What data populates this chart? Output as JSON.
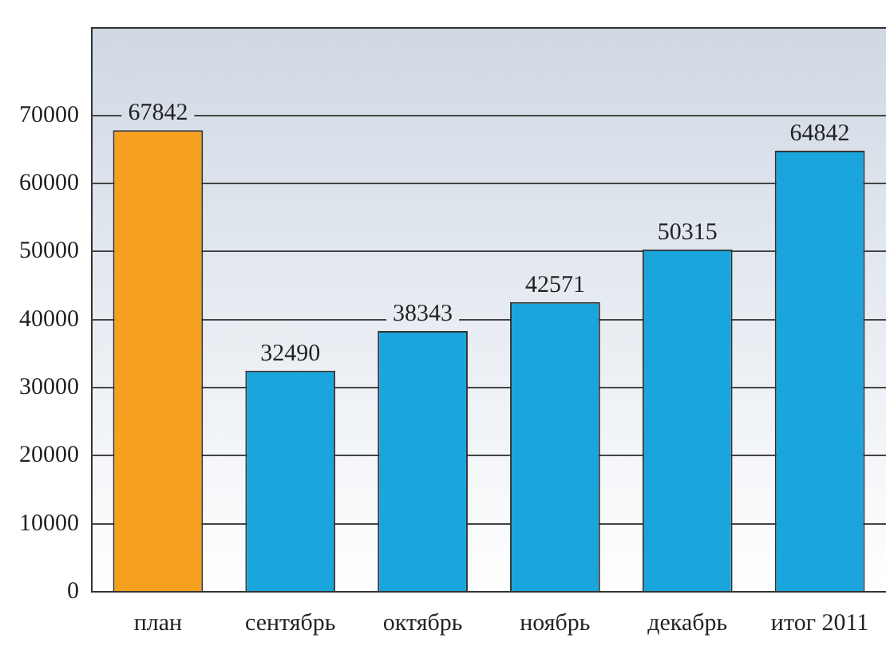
{
  "chart_data": {
    "type": "bar",
    "categories": [
      "план",
      "сентябрь",
      "октябрь",
      "ноябрь",
      "декабрь",
      "итог 2011"
    ],
    "values": [
      67842,
      32490,
      38343,
      42571,
      50315,
      64842
    ],
    "colors": [
      "#f5a01e",
      "#1aa6dc",
      "#1aa6dc",
      "#1aa6dc",
      "#1aa6dc",
      "#1aa6dc"
    ],
    "ylim": [
      0,
      83000
    ],
    "yticks": [
      0,
      10000,
      20000,
      30000,
      40000,
      50000,
      60000,
      70000
    ],
    "grid": "y",
    "data_labels": true
  }
}
